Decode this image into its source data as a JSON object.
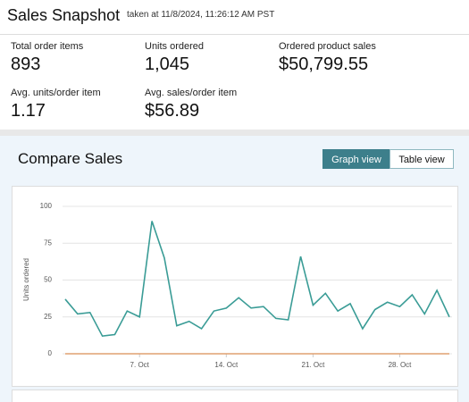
{
  "header": {
    "title": "Sales Snapshot",
    "timestamp": "taken at 11/8/2024, 11:26:12 AM PST"
  },
  "metrics": [
    {
      "label": "Total order items",
      "value": "893"
    },
    {
      "label": "Units ordered",
      "value": "1,045"
    },
    {
      "label": "Ordered product sales",
      "value": "$50,799.55"
    },
    {
      "label": "Avg. units/order item",
      "value": "1.17"
    },
    {
      "label": "Avg. sales/order item",
      "value": "$56.89"
    }
  ],
  "compare": {
    "title": "Compare Sales",
    "buttons": [
      "Graph view",
      "Table view"
    ]
  },
  "chart_data": {
    "type": "line",
    "y_label": "Units ordered",
    "categories": [
      null,
      null,
      null,
      null,
      null,
      null,
      "7. Oct",
      null,
      null,
      null,
      null,
      null,
      null,
      "14. Oct",
      null,
      null,
      null,
      null,
      null,
      null,
      "21. Oct",
      null,
      null,
      null,
      null,
      null,
      null,
      "28. Oct",
      null,
      null,
      null,
      null
    ],
    "series": [
      {
        "color": "#3a9c96",
        "values": [
          37,
          27,
          28,
          12,
          13,
          29,
          25,
          90,
          65,
          19,
          22,
          17,
          29,
          31,
          38,
          31,
          32,
          24,
          23,
          66,
          33,
          41,
          29,
          34,
          17,
          30,
          35,
          32,
          40,
          27,
          43,
          25
        ]
      },
      {
        "color": "#e0a070",
        "values": [
          0,
          0,
          0,
          0,
          0,
          0,
          0,
          0,
          0,
          0,
          0,
          0,
          0,
          0,
          0,
          0,
          0,
          0,
          0,
          0,
          0,
          0,
          0,
          0,
          0,
          0,
          0,
          0,
          0,
          0,
          0,
          0
        ]
      }
    ],
    "ylim": [
      0,
      100
    ],
    "yticks": [
      0,
      25,
      50,
      75,
      100
    ],
    "grid": true
  }
}
